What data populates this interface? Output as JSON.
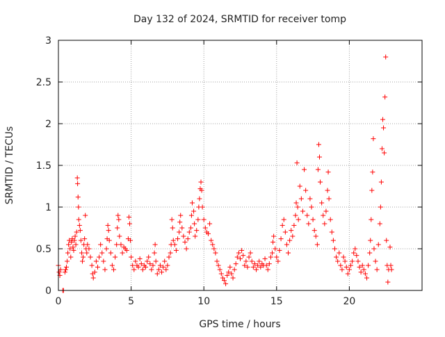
{
  "chart_data": {
    "type": "scatter",
    "title": "Day 132 of 2024, SRMTID for receiver tomp",
    "xlabel": "GPS time / hours",
    "ylabel": "SRMTID / TECUs",
    "xlim": [
      0,
      25
    ],
    "ylim": [
      0,
      3
    ],
    "xticks": [
      0,
      5,
      10,
      15,
      20
    ],
    "yticks": [
      0,
      0.5,
      1,
      1.5,
      2,
      2.5,
      3
    ],
    "xtick_labels": [
      "0",
      "5",
      "10",
      "15",
      "20"
    ],
    "ytick_labels": [
      "0",
      "0.5",
      "1",
      "1.5",
      "2",
      "2.5",
      "3"
    ],
    "grid": true,
    "marker": "+",
    "series": [
      {
        "name": "tomp",
        "color": "#ff0000",
        "points": [
          [
            0.0,
            0.3
          ],
          [
            0.05,
            0.22
          ],
          [
            0.1,
            0.18
          ],
          [
            0.15,
            0.25
          ],
          [
            0.3,
            0.0
          ],
          [
            0.35,
            0.0
          ],
          [
            0.45,
            0.22
          ],
          [
            0.5,
            0.25
          ],
          [
            0.55,
            0.28
          ],
          [
            0.6,
            0.35
          ],
          [
            0.65,
            0.45
          ],
          [
            0.7,
            0.55
          ],
          [
            0.75,
            0.6
          ],
          [
            0.8,
            0.5
          ],
          [
            0.85,
            0.4
          ],
          [
            0.9,
            0.58
          ],
          [
            0.95,
            0.62
          ],
          [
            1.0,
            0.52
          ],
          [
            1.05,
            0.48
          ],
          [
            1.1,
            0.6
          ],
          [
            1.15,
            0.65
          ],
          [
            1.2,
            0.55
          ],
          [
            1.25,
            0.7
          ],
          [
            1.3,
            1.35
          ],
          [
            1.32,
            1.28
          ],
          [
            1.35,
            1.12
          ],
          [
            1.38,
            1.0
          ],
          [
            1.4,
            0.85
          ],
          [
            1.45,
            0.78
          ],
          [
            1.5,
            0.72
          ],
          [
            1.55,
            0.6
          ],
          [
            1.6,
            0.45
          ],
          [
            1.65,
            0.35
          ],
          [
            1.7,
            0.4
          ],
          [
            1.75,
            0.55
          ],
          [
            1.8,
            0.62
          ],
          [
            1.85,
            0.9
          ],
          [
            1.9,
            0.5
          ],
          [
            1.95,
            0.45
          ],
          [
            2.0,
            0.55
          ],
          [
            2.1,
            0.5
          ],
          [
            2.2,
            0.4
          ],
          [
            2.3,
            0.3
          ],
          [
            2.35,
            0.2
          ],
          [
            2.4,
            0.15
          ],
          [
            2.5,
            0.22
          ],
          [
            2.6,
            0.35
          ],
          [
            2.7,
            0.28
          ],
          [
            2.8,
            0.4
          ],
          [
            2.9,
            0.55
          ],
          [
            3.0,
            0.45
          ],
          [
            3.1,
            0.35
          ],
          [
            3.2,
            0.25
          ],
          [
            3.3,
            0.5
          ],
          [
            3.35,
            0.62
          ],
          [
            3.4,
            0.78
          ],
          [
            3.45,
            0.72
          ],
          [
            3.5,
            0.6
          ],
          [
            3.6,
            0.45
          ],
          [
            3.7,
            0.3
          ],
          [
            3.8,
            0.25
          ],
          [
            3.9,
            0.4
          ],
          [
            4.0,
            0.55
          ],
          [
            4.05,
            0.75
          ],
          [
            4.1,
            0.9
          ],
          [
            4.15,
            0.85
          ],
          [
            4.2,
            0.65
          ],
          [
            4.3,
            0.55
          ],
          [
            4.4,
            0.45
          ],
          [
            4.5,
            0.52
          ],
          [
            4.6,
            0.5
          ],
          [
            4.7,
            0.48
          ],
          [
            4.8,
            0.62
          ],
          [
            4.85,
            0.88
          ],
          [
            4.9,
            0.8
          ],
          [
            4.95,
            0.6
          ],
          [
            5.0,
            0.4
          ],
          [
            5.1,
            0.3
          ],
          [
            5.2,
            0.25
          ],
          [
            5.3,
            0.35
          ],
          [
            5.4,
            0.3
          ],
          [
            5.5,
            0.28
          ],
          [
            5.6,
            0.38
          ],
          [
            5.7,
            0.32
          ],
          [
            5.8,
            0.25
          ],
          [
            5.9,
            0.3
          ],
          [
            6.0,
            0.28
          ],
          [
            6.1,
            0.35
          ],
          [
            6.2,
            0.4
          ],
          [
            6.3,
            0.32
          ],
          [
            6.4,
            0.25
          ],
          [
            6.5,
            0.3
          ],
          [
            6.6,
            0.45
          ],
          [
            6.65,
            0.55
          ],
          [
            6.7,
            0.35
          ],
          [
            6.8,
            0.2
          ],
          [
            6.9,
            0.25
          ],
          [
            7.0,
            0.3
          ],
          [
            7.1,
            0.22
          ],
          [
            7.2,
            0.28
          ],
          [
            7.3,
            0.35
          ],
          [
            7.4,
            0.25
          ],
          [
            7.5,
            0.3
          ],
          [
            7.6,
            0.4
          ],
          [
            7.7,
            0.45
          ],
          [
            7.75,
            0.55
          ],
          [
            7.8,
            0.85
          ],
          [
            7.85,
            0.75
          ],
          [
            7.9,
            0.6
          ],
          [
            8.0,
            0.55
          ],
          [
            8.1,
            0.48
          ],
          [
            8.2,
            0.62
          ],
          [
            8.3,
            0.7
          ],
          [
            8.35,
            0.82
          ],
          [
            8.4,
            0.9
          ],
          [
            8.5,
            0.75
          ],
          [
            8.6,
            0.65
          ],
          [
            8.7,
            0.58
          ],
          [
            8.8,
            0.5
          ],
          [
            8.9,
            0.62
          ],
          [
            9.0,
            0.7
          ],
          [
            9.1,
            0.75
          ],
          [
            9.15,
            0.9
          ],
          [
            9.2,
            1.05
          ],
          [
            9.3,
            0.95
          ],
          [
            9.35,
            0.8
          ],
          [
            9.4,
            0.65
          ],
          [
            9.5,
            0.72
          ],
          [
            9.6,
            0.85
          ],
          [
            9.65,
            1.0
          ],
          [
            9.7,
            1.1
          ],
          [
            9.75,
            1.22
          ],
          [
            9.8,
            1.3
          ],
          [
            9.85,
            1.2
          ],
          [
            9.9,
            1.0
          ],
          [
            10.0,
            0.85
          ],
          [
            10.1,
            0.75
          ],
          [
            10.2,
            0.7
          ],
          [
            10.3,
            0.68
          ],
          [
            10.4,
            0.8
          ],
          [
            10.5,
            0.6
          ],
          [
            10.6,
            0.55
          ],
          [
            10.7,
            0.5
          ],
          [
            10.8,
            0.45
          ],
          [
            10.9,
            0.35
          ],
          [
            11.0,
            0.3
          ],
          [
            11.1,
            0.25
          ],
          [
            11.2,
            0.2
          ],
          [
            11.3,
            0.15
          ],
          [
            11.4,
            0.12
          ],
          [
            11.5,
            0.08
          ],
          [
            11.6,
            0.18
          ],
          [
            11.7,
            0.22
          ],
          [
            11.8,
            0.28
          ],
          [
            11.9,
            0.2
          ],
          [
            12.0,
            0.15
          ],
          [
            12.1,
            0.25
          ],
          [
            12.2,
            0.32
          ],
          [
            12.3,
            0.4
          ],
          [
            12.4,
            0.45
          ],
          [
            12.5,
            0.38
          ],
          [
            12.6,
            0.48
          ],
          [
            12.7,
            0.42
          ],
          [
            12.8,
            0.3
          ],
          [
            12.9,
            0.35
          ],
          [
            13.0,
            0.28
          ],
          [
            13.1,
            0.4
          ],
          [
            13.2,
            0.45
          ],
          [
            13.3,
            0.35
          ],
          [
            13.4,
            0.28
          ],
          [
            13.5,
            0.32
          ],
          [
            13.6,
            0.25
          ],
          [
            13.7,
            0.3
          ],
          [
            13.8,
            0.35
          ],
          [
            13.9,
            0.28
          ],
          [
            14.0,
            0.32
          ],
          [
            14.1,
            0.3
          ],
          [
            14.2,
            0.38
          ],
          [
            14.3,
            0.3
          ],
          [
            14.4,
            0.25
          ],
          [
            14.5,
            0.32
          ],
          [
            14.6,
            0.4
          ],
          [
            14.7,
            0.45
          ],
          [
            14.75,
            0.58
          ],
          [
            14.8,
            0.65
          ],
          [
            14.9,
            0.5
          ],
          [
            15.0,
            0.4
          ],
          [
            15.1,
            0.35
          ],
          [
            15.2,
            0.48
          ],
          [
            15.3,
            0.62
          ],
          [
            15.4,
            0.78
          ],
          [
            15.5,
            0.85
          ],
          [
            15.6,
            0.7
          ],
          [
            15.7,
            0.55
          ],
          [
            15.8,
            0.45
          ],
          [
            15.9,
            0.6
          ],
          [
            16.0,
            0.72
          ],
          [
            16.1,
            0.65
          ],
          [
            16.2,
            0.78
          ],
          [
            16.3,
            0.9
          ],
          [
            16.35,
            1.05
          ],
          [
            16.4,
            1.53
          ],
          [
            16.45,
            1.0
          ],
          [
            16.5,
            0.85
          ],
          [
            16.6,
            1.25
          ],
          [
            16.7,
            1.1
          ],
          [
            16.8,
            0.95
          ],
          [
            16.9,
            1.45
          ],
          [
            17.0,
            1.2
          ],
          [
            17.1,
            0.9
          ],
          [
            17.2,
            0.8
          ],
          [
            17.3,
            1.1
          ],
          [
            17.4,
            1.0
          ],
          [
            17.5,
            0.85
          ],
          [
            17.6,
            0.72
          ],
          [
            17.7,
            0.65
          ],
          [
            17.8,
            0.55
          ],
          [
            17.85,
            1.45
          ],
          [
            17.9,
            1.75
          ],
          [
            17.95,
            1.6
          ],
          [
            18.0,
            1.3
          ],
          [
            18.1,
            1.05
          ],
          [
            18.2,
            0.9
          ],
          [
            18.3,
            0.8
          ],
          [
            18.4,
            0.95
          ],
          [
            18.5,
            1.2
          ],
          [
            18.55,
            1.42
          ],
          [
            18.6,
            1.1
          ],
          [
            18.7,
            0.85
          ],
          [
            18.8,
            0.7
          ],
          [
            18.9,
            0.6
          ],
          [
            19.0,
            0.5
          ],
          [
            19.1,
            0.4
          ],
          [
            19.2,
            0.35
          ],
          [
            19.3,
            0.45
          ],
          [
            19.4,
            0.3
          ],
          [
            19.5,
            0.25
          ],
          [
            19.6,
            0.4
          ],
          [
            19.7,
            0.35
          ],
          [
            19.8,
            0.28
          ],
          [
            19.9,
            0.2
          ],
          [
            20.0,
            0.25
          ],
          [
            20.1,
            0.3
          ],
          [
            20.2,
            0.35
          ],
          [
            20.3,
            0.45
          ],
          [
            20.4,
            0.5
          ],
          [
            20.5,
            0.42
          ],
          [
            20.6,
            0.35
          ],
          [
            20.7,
            0.28
          ],
          [
            20.8,
            0.22
          ],
          [
            20.9,
            0.3
          ],
          [
            21.0,
            0.25
          ],
          [
            21.1,
            0.2
          ],
          [
            21.2,
            0.15
          ],
          [
            21.3,
            0.3
          ],
          [
            21.4,
            0.45
          ],
          [
            21.45,
            0.6
          ],
          [
            21.5,
            0.85
          ],
          [
            21.55,
            1.2
          ],
          [
            21.6,
            1.42
          ],
          [
            21.65,
            1.82
          ],
          [
            21.7,
            0.5
          ],
          [
            21.8,
            0.35
          ],
          [
            21.9,
            0.25
          ],
          [
            22.0,
            0.55
          ],
          [
            22.1,
            0.8
          ],
          [
            22.15,
            1.0
          ],
          [
            22.2,
            1.3
          ],
          [
            22.25,
            1.7
          ],
          [
            22.3,
            2.05
          ],
          [
            22.35,
            1.95
          ],
          [
            22.4,
            1.65
          ],
          [
            22.45,
            2.32
          ],
          [
            22.5,
            2.8
          ],
          [
            22.55,
            0.6
          ],
          [
            22.6,
            0.3
          ],
          [
            22.65,
            0.1
          ],
          [
            22.7,
            0.25
          ],
          [
            22.8,
            0.52
          ],
          [
            22.85,
            0.3
          ],
          [
            22.9,
            0.25
          ]
        ]
      }
    ]
  }
}
